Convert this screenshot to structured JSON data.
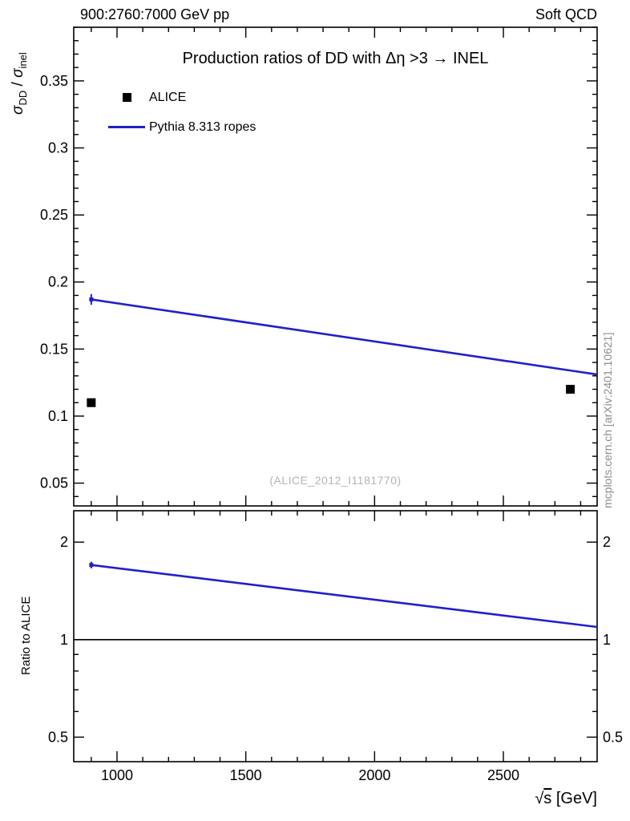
{
  "header": {
    "left": "900:2760:7000 GeV pp",
    "right": "Soft QCD"
  },
  "title": "Production ratios of DD with Δη >3 → INEL",
  "watermark": "(ALICE_2012_I1181770)",
  "side_note": "mcplots.cern.ch [arXiv:2401.10621]",
  "legend": [
    {
      "label": "ALICE",
      "marker": "square",
      "color": "#000000"
    },
    {
      "label": "Pythia 8.313 ropes",
      "marker": "line",
      "color": "#2020c8"
    }
  ],
  "axes": {
    "y_top_parts": {
      "sigma1": "σ",
      "sub1": "DD",
      "mid": " / ",
      "sigma2": "σ",
      "sub2": "inel"
    },
    "y_bottom": "Ratio to ALICE",
    "x_title_parts": {
      "root": "√",
      "s": "s",
      "unit": " [GeV]"
    }
  },
  "chart_data": {
    "type": "line",
    "title": "Production ratios of DD with Δη >3 → INEL",
    "xlabel": "√s [GeV]",
    "ylabel": "σ_DD / σ_inel",
    "ratio_ylabel": "Ratio to ALICE",
    "x_range": [
      832,
      2864
    ],
    "x_major_ticks": {
      "values": [
        1000,
        1500,
        2000,
        2500
      ],
      "labels": [
        "1000",
        "1500",
        "2000",
        "2500"
      ]
    },
    "x_minor_step": 100,
    "top_panel": {
      "y_range": [
        0.033,
        0.39
      ],
      "y_major_ticks": {
        "values": [
          0.05,
          0.1,
          0.15,
          0.2,
          0.25,
          0.3,
          0.35
        ],
        "labels": [
          "0.05",
          "0.1",
          "0.15",
          "0.2",
          "0.25",
          "0.3",
          "0.35"
        ]
      },
      "y_minor_step": 0.01
    },
    "bottom_panel": {
      "y_scale": "log",
      "y_range": [
        0.42,
        2.5
      ],
      "y_major_ticks": {
        "values": [
          0.5,
          1,
          2
        ],
        "labels": [
          "0.5",
          "1",
          "2"
        ]
      },
      "y_minor_ticks": [
        0.6,
        0.7,
        0.8,
        0.9
      ],
      "reference_line": 1
    },
    "series": [
      {
        "name": "ALICE",
        "style": "marker-square",
        "color": "#000000",
        "x": [
          900,
          2760
        ],
        "y": [
          0.11,
          0.12
        ]
      },
      {
        "name": "Pythia 8.313 ropes",
        "style": "line",
        "color": "#2020c8",
        "x": [
          900,
          2760
        ],
        "y": [
          0.187,
          0.134
        ],
        "extend_to_edge": true,
        "first_point_error": 0.004
      }
    ],
    "ratio": {
      "name": "Pythia 8.313 ropes / ALICE",
      "color": "#2020c8",
      "x": [
        900,
        2760
      ],
      "y": [
        1.7,
        1.12
      ],
      "extend_to_edge": true,
      "first_point_error": 0.04
    }
  }
}
